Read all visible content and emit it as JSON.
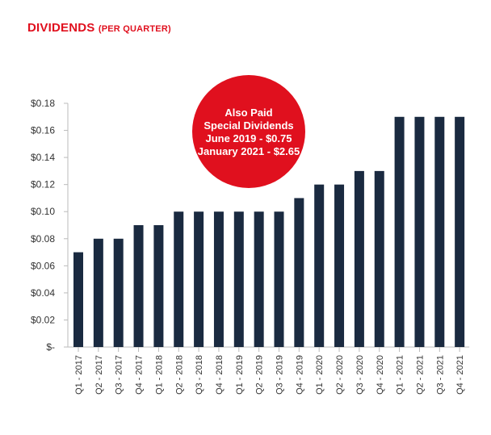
{
  "title": {
    "main": "DIVIDENDS",
    "sub": "(PER QUARTER)"
  },
  "colors": {
    "title": "#e0101e",
    "bar": "#1a2a40",
    "callout": "#e0101e",
    "axis": "#bbbbbb",
    "text": "#333333"
  },
  "callout": {
    "lines": [
      "Also Paid",
      "Special Dividends",
      "June 2019 - $0.75",
      "January 2021 - $2.65"
    ]
  },
  "chart_data": {
    "type": "bar",
    "title": "DIVIDENDS (PER QUARTER)",
    "xlabel": "",
    "ylabel": "",
    "ylim": [
      0,
      0.18
    ],
    "grid": false,
    "legend": "none",
    "y_ticks": [
      0,
      0.02,
      0.04,
      0.06,
      0.08,
      0.1,
      0.12,
      0.14,
      0.16,
      0.18
    ],
    "y_tick_labels": [
      "$-",
      "$0.02",
      "$0.04",
      "$0.06",
      "$0.08",
      "$0.10",
      "$0.12",
      "$0.14",
      "$0.16",
      "$0.18"
    ],
    "categories": [
      "Q1 - 2017",
      "Q2 - 2017",
      "Q3 - 2017",
      "Q4 - 2017",
      "Q1 - 2018",
      "Q2 - 2018",
      "Q3 - 2018",
      "Q4 - 2018",
      "Q1 - 2019",
      "Q2 - 2019",
      "Q3 - 2019",
      "Q4 - 2019",
      "Q1 - 2020",
      "Q2 - 2020",
      "Q3 - 2020",
      "Q4 - 2020",
      "Q1 - 2021",
      "Q2 - 2021",
      "Q3 - 2021",
      "Q4 - 2021"
    ],
    "values": [
      0.07,
      0.08,
      0.08,
      0.09,
      0.09,
      0.1,
      0.1,
      0.1,
      0.1,
      0.1,
      0.1,
      0.11,
      0.12,
      0.12,
      0.13,
      0.13,
      0.17,
      0.17,
      0.17,
      0.17
    ]
  }
}
